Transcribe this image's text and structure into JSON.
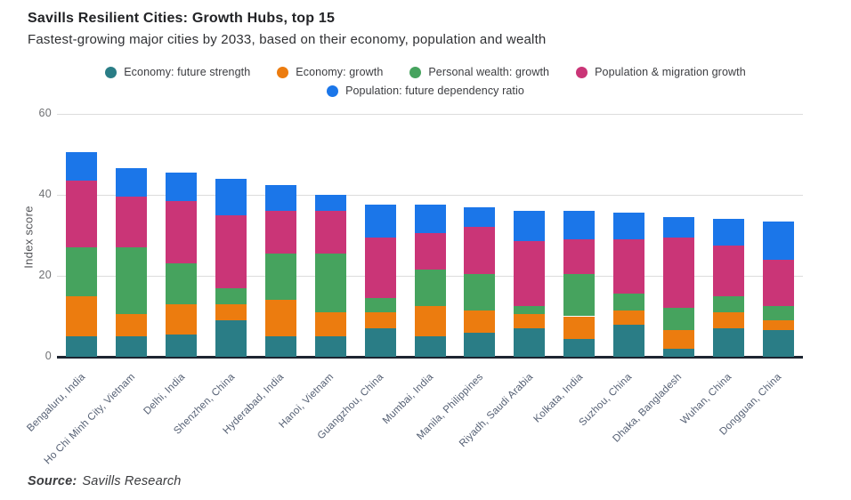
{
  "header": {
    "title": "Savills Resilient Cities: Growth Hubs, top 15",
    "subtitle": "Fastest-growing major cities by 2033, based on their economy, population and wealth"
  },
  "legend": {
    "items": [
      {
        "label": "Economy: future strength",
        "color": "#2A7D86"
      },
      {
        "label": "Economy: growth",
        "color": "#EC7C0F"
      },
      {
        "label": "Personal wealth: growth",
        "color": "#46A35E"
      },
      {
        "label": "Population & migration growth",
        "color": "#CA3577"
      },
      {
        "label": "Population: future dependency ratio",
        "color": "#1B76E9"
      }
    ]
  },
  "chart_data": {
    "type": "bar",
    "stacked": true,
    "title": "Savills Resilient Cities: Growth Hubs, top 15",
    "xlabel": "",
    "ylabel": "Index score",
    "ylim": [
      0,
      60
    ],
    "yticks": [
      0,
      20,
      40,
      60
    ],
    "grid": true,
    "legend_position": "top-center",
    "categories": [
      "Bengaluru, India",
      "Ho Chi Minh City, Vietnam",
      "Delhi, India",
      "Shenzhen, China",
      "Hyderabad, India",
      "Hanoi, Vietnam",
      "Guangzhou, China",
      "Mumbai, India",
      "Manila, Philippines",
      "Riyadh, Saudi Arabia",
      "Kolkata, India",
      "Suzhou, China",
      "Dhaka, Bangladesh",
      "Wuhan, China",
      "Dongguan, China"
    ],
    "series": [
      {
        "name": "Economy: future strength",
        "color": "#2A7D86",
        "values": [
          5,
          5,
          5.5,
          9,
          5,
          5,
          7,
          5,
          6,
          7,
          4.5,
          8,
          2,
          7,
          6.5
        ]
      },
      {
        "name": "Economy: growth",
        "color": "#EC7C0F",
        "values": [
          10,
          5.5,
          7.5,
          4,
          9,
          6,
          4,
          7.5,
          5.5,
          3.5,
          5.5,
          3.5,
          4.5,
          4,
          2.5
        ]
      },
      {
        "name": "Personal wealth: growth",
        "color": "#46A35E",
        "values": [
          12,
          16.5,
          10,
          4,
          11.5,
          14.5,
          3.5,
          9,
          9,
          2,
          10.5,
          4,
          5.5,
          4,
          3.5
        ]
      },
      {
        "name": "Population & migration growth",
        "color": "#CA3577",
        "values": [
          16.5,
          12.5,
          15.5,
          18,
          10.5,
          10.5,
          15,
          9,
          11.5,
          16,
          8.5,
          13.5,
          17.5,
          12.5,
          11.5
        ]
      },
      {
        "name": "Population: future dependency ratio",
        "color": "#1B76E9",
        "values": [
          7,
          7,
          7,
          9,
          6.5,
          4,
          8,
          7,
          5,
          7.5,
          7,
          6.5,
          5,
          6.5,
          9.5
        ]
      }
    ]
  },
  "footer": {
    "source_label": "Source:",
    "source_value": "Savills Research"
  }
}
